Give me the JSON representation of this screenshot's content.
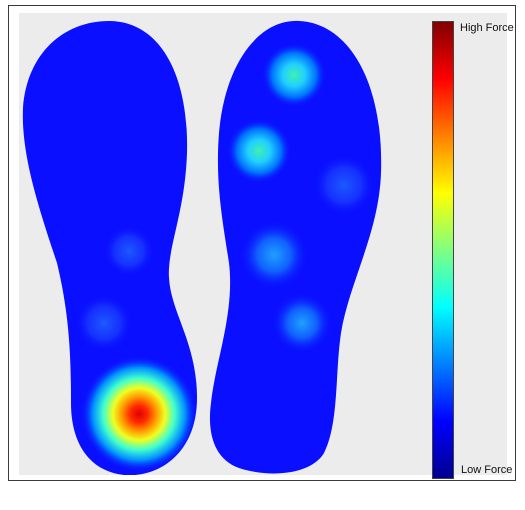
{
  "legend": {
    "high_label": "High Force",
    "low_label": "Low Force",
    "colormap": "jet",
    "colors": [
      "#00008f",
      "#0000ff",
      "#0080ff",
      "#00ffff",
      "#80ff80",
      "#ffff00",
      "#ff8000",
      "#ff0000",
      "#800000"
    ]
  },
  "colors": {
    "background": "#ececec",
    "foot_base": "#0a10ff",
    "frame_border": "#3a3a3a"
  },
  "insoles": [
    {
      "name": "left-insole",
      "pressure_points": [
        {
          "region": "heel",
          "level": 1.0
        },
        {
          "region": "midfoot",
          "level": 0.12
        },
        {
          "region": "arch",
          "level": 0.08
        }
      ]
    },
    {
      "name": "right-insole",
      "pressure_points": [
        {
          "region": "toe",
          "level": 0.45
        },
        {
          "region": "ball-medial",
          "level": 0.5
        },
        {
          "region": "ball-lateral",
          "level": 0.22
        },
        {
          "region": "midfoot",
          "level": 0.3
        },
        {
          "region": "arch-lateral",
          "level": 0.25
        }
      ]
    }
  ]
}
